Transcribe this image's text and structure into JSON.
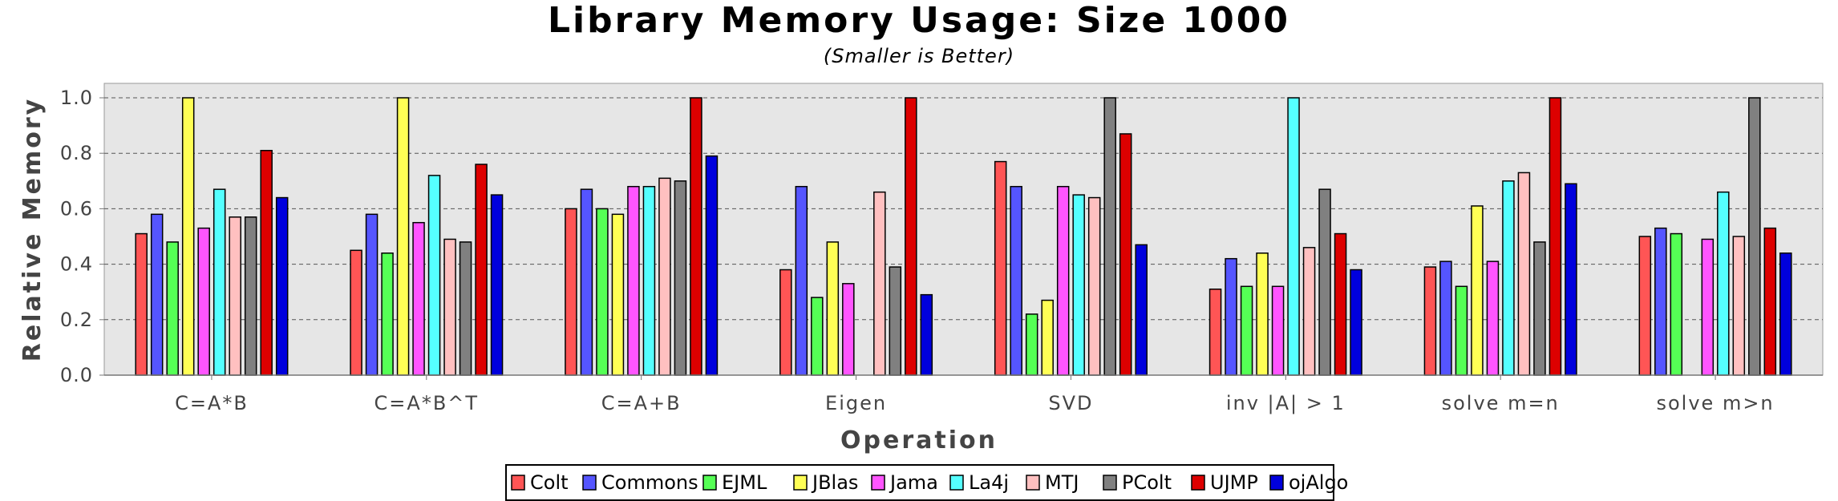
{
  "chart_data": {
    "type": "bar",
    "title": "Library Memory Usage: Size 1000",
    "subtitle": "(Smaller is Better)",
    "xlabel": "Operation",
    "ylabel": "Relative Memory",
    "ylim": [
      0,
      1.05
    ],
    "yticks": [
      "0.0",
      "0.2",
      "0.4",
      "0.6",
      "0.8",
      "1.0"
    ],
    "grid": true,
    "legend_position": "bottom",
    "categories": [
      "C=A*B",
      "C=A*B^T",
      "C=A+B",
      "Eigen",
      "SVD",
      "inv |A| > 1",
      "solve m=n",
      "solve m>n"
    ],
    "series": [
      {
        "name": "Colt",
        "color": "#ff5555",
        "values": [
          0.51,
          0.45,
          0.6,
          0.38,
          0.77,
          0.31,
          0.39,
          0.5
        ]
      },
      {
        "name": "Commons",
        "color": "#5555ff",
        "values": [
          0.58,
          0.58,
          0.67,
          0.68,
          0.68,
          0.42,
          0.41,
          0.53
        ]
      },
      {
        "name": "EJML",
        "color": "#55ff55",
        "values": [
          0.48,
          0.44,
          0.6,
          0.28,
          0.22,
          0.32,
          0.32,
          0.51
        ]
      },
      {
        "name": "JBlas",
        "color": "#ffff55",
        "values": [
          1.0,
          1.0,
          0.58,
          0.48,
          0.27,
          0.44,
          0.61,
          null
        ]
      },
      {
        "name": "Jama",
        "color": "#ff55ff",
        "values": [
          0.53,
          0.55,
          0.68,
          0.33,
          0.68,
          0.32,
          0.41,
          0.49
        ]
      },
      {
        "name": "La4j",
        "color": "#55ffff",
        "values": [
          0.67,
          0.72,
          0.68,
          null,
          0.65,
          1.0,
          0.7,
          0.66
        ]
      },
      {
        "name": "MTJ",
        "color": "#ffc0c0",
        "values": [
          0.57,
          0.49,
          0.71,
          0.66,
          0.64,
          0.46,
          0.73,
          0.5
        ]
      },
      {
        "name": "PColt",
        "color": "#808080",
        "values": [
          0.57,
          0.48,
          0.7,
          0.39,
          1.0,
          0.67,
          0.48,
          1.0
        ]
      },
      {
        "name": "UJMP",
        "color": "#dd0000",
        "values": [
          0.81,
          0.76,
          1.0,
          1.0,
          0.87,
          0.51,
          1.0,
          0.53
        ]
      },
      {
        "name": "ojAlgo",
        "color": "#0000dd",
        "values": [
          0.64,
          0.65,
          0.79,
          0.29,
          0.47,
          0.38,
          0.69,
          0.44
        ]
      }
    ]
  }
}
